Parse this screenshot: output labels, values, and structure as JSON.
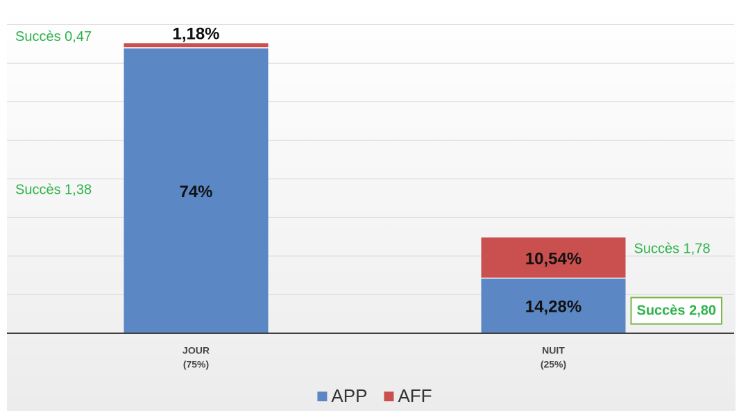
{
  "chart_data": {
    "type": "stacked_bar",
    "categories": [
      "JOUR",
      "NUIT"
    ],
    "category_sublabels": [
      "(75%)",
      "(25%)"
    ],
    "series": [
      {
        "name": "APP",
        "color": "#5b87c5",
        "values": [
          74,
          14.28
        ],
        "value_labels": [
          "74%",
          "14,28%"
        ]
      },
      {
        "name": "AFF",
        "color": "#c9504e",
        "values": [
          1.18,
          10.54
        ],
        "value_labels": [
          "1,18%",
          "10,54%"
        ]
      }
    ],
    "annotations": [
      {
        "text": "Succès 0,47",
        "series": 1,
        "index": 0
      },
      {
        "text": "Succès 1,38",
        "series": 0,
        "index": 0
      },
      {
        "text": "Succès 1,78",
        "series": 1,
        "index": 1
      },
      {
        "text": "Succès 2,80",
        "series": 0,
        "index": 1,
        "boxed": true
      }
    ],
    "annotation_color": "#2db34a",
    "ylim": [
      0,
      80
    ],
    "yticks": [
      0,
      10,
      20,
      30,
      40,
      50,
      60,
      70,
      80
    ],
    "grid": true,
    "legend": "bottom"
  }
}
